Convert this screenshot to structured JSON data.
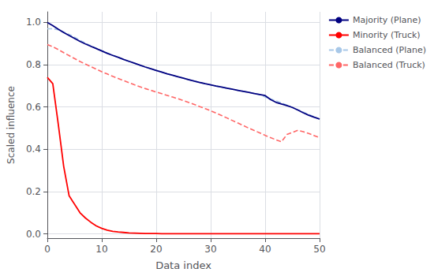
{
  "chart_data": {
    "type": "line",
    "xlabel": "Data index",
    "ylabel": "Scaled influence",
    "x": [
      0,
      1,
      2,
      3,
      4,
      5,
      6,
      7,
      8,
      9,
      10,
      11,
      12,
      13,
      14,
      15,
      16,
      17,
      18,
      19,
      20,
      21,
      22,
      23,
      24,
      25,
      26,
      27,
      28,
      29,
      30,
      31,
      32,
      33,
      34,
      35,
      36,
      37,
      38,
      39,
      40,
      41,
      42,
      43,
      44,
      45,
      46,
      47,
      48,
      49,
      50
    ],
    "xlim": [
      0,
      50
    ],
    "xticks": [
      0,
      10,
      20,
      30,
      40,
      50
    ],
    "ylim": [
      -0.02,
      1.05
    ],
    "yticks": [
      {
        "value": 0.0,
        "label": "0.0"
      },
      0.2,
      0.4,
      0.6,
      0.8,
      {
        "value": 1.0,
        "label": "1.0"
      }
    ],
    "grid": true,
    "legend": "upper right",
    "series": [
      {
        "name": "Majority (Plane)",
        "color": "#000080",
        "line_style": "solid",
        "values": [
          1.0,
          0.985,
          0.968,
          0.952,
          0.938,
          0.924,
          0.91,
          0.898,
          0.887,
          0.876,
          0.865,
          0.854,
          0.844,
          0.835,
          0.825,
          0.816,
          0.807,
          0.798,
          0.789,
          0.781,
          0.773,
          0.765,
          0.757,
          0.75,
          0.743,
          0.736,
          0.729,
          0.722,
          0.716,
          0.71,
          0.705,
          0.699,
          0.694,
          0.689,
          0.684,
          0.679,
          0.674,
          0.669,
          0.664,
          0.659,
          0.654,
          0.635,
          0.622,
          0.614,
          0.607,
          0.598,
          0.586,
          0.573,
          0.561,
          0.552,
          0.543
        ]
      },
      {
        "name": "Minority (Truck)",
        "color": "#FF0000",
        "line_style": "solid",
        "values": [
          0.74,
          0.71,
          0.52,
          0.32,
          0.18,
          0.14,
          0.1,
          0.075,
          0.055,
          0.038,
          0.026,
          0.018,
          0.012,
          0.009,
          0.007,
          0.005,
          0.004,
          0.003,
          0.002,
          0.002,
          0.002,
          0.001,
          0.001,
          0.001,
          0.001,
          0.001,
          0.001,
          0.001,
          0.001,
          0.001,
          0.001,
          0.001,
          0.001,
          0.001,
          0.001,
          0.001,
          0.001,
          0.001,
          0.001,
          0.001,
          0.001,
          0.001,
          0.001,
          0.001,
          0.001,
          0.001,
          0.001,
          0.001,
          0.001,
          0.001,
          0.001
        ]
      },
      {
        "name": "Balanced (Plane)",
        "color": "#A8C8E8",
        "line_style": "dashed",
        "values": [
          0.97,
          0.97,
          0.965,
          0.955,
          0.943,
          0.93,
          0.915,
          0.902,
          0.89,
          0.878,
          0.866,
          0.856,
          0.845,
          0.835,
          0.825,
          0.815,
          0.807,
          0.798,
          0.789,
          0.781,
          0.773,
          0.765,
          0.757,
          0.75,
          0.743,
          0.736,
          0.729,
          0.722,
          0.716,
          0.71,
          0.705,
          0.699,
          0.694,
          0.689,
          0.684,
          0.679,
          0.674,
          0.669,
          0.664,
          0.659,
          0.647,
          0.638,
          0.629,
          0.619,
          0.609,
          0.598,
          0.587,
          0.576,
          0.565,
          0.554,
          0.543
        ]
      },
      {
        "name": "Balanced (Truck)",
        "color": "#FF6666",
        "line_style": "dashed",
        "values": [
          0.895,
          0.885,
          0.872,
          0.857,
          0.843,
          0.829,
          0.815,
          0.803,
          0.791,
          0.779,
          0.767,
          0.756,
          0.745,
          0.735,
          0.725,
          0.715,
          0.705,
          0.696,
          0.687,
          0.679,
          0.671,
          0.663,
          0.655,
          0.647,
          0.639,
          0.63,
          0.621,
          0.612,
          0.602,
          0.592,
          0.582,
          0.571,
          0.56,
          0.548,
          0.536,
          0.524,
          0.512,
          0.5,
          0.489,
          0.478,
          0.466,
          0.455,
          0.445,
          0.436,
          0.47,
          0.48,
          0.49,
          0.483,
          0.475,
          0.465,
          0.455
        ]
      }
    ]
  }
}
